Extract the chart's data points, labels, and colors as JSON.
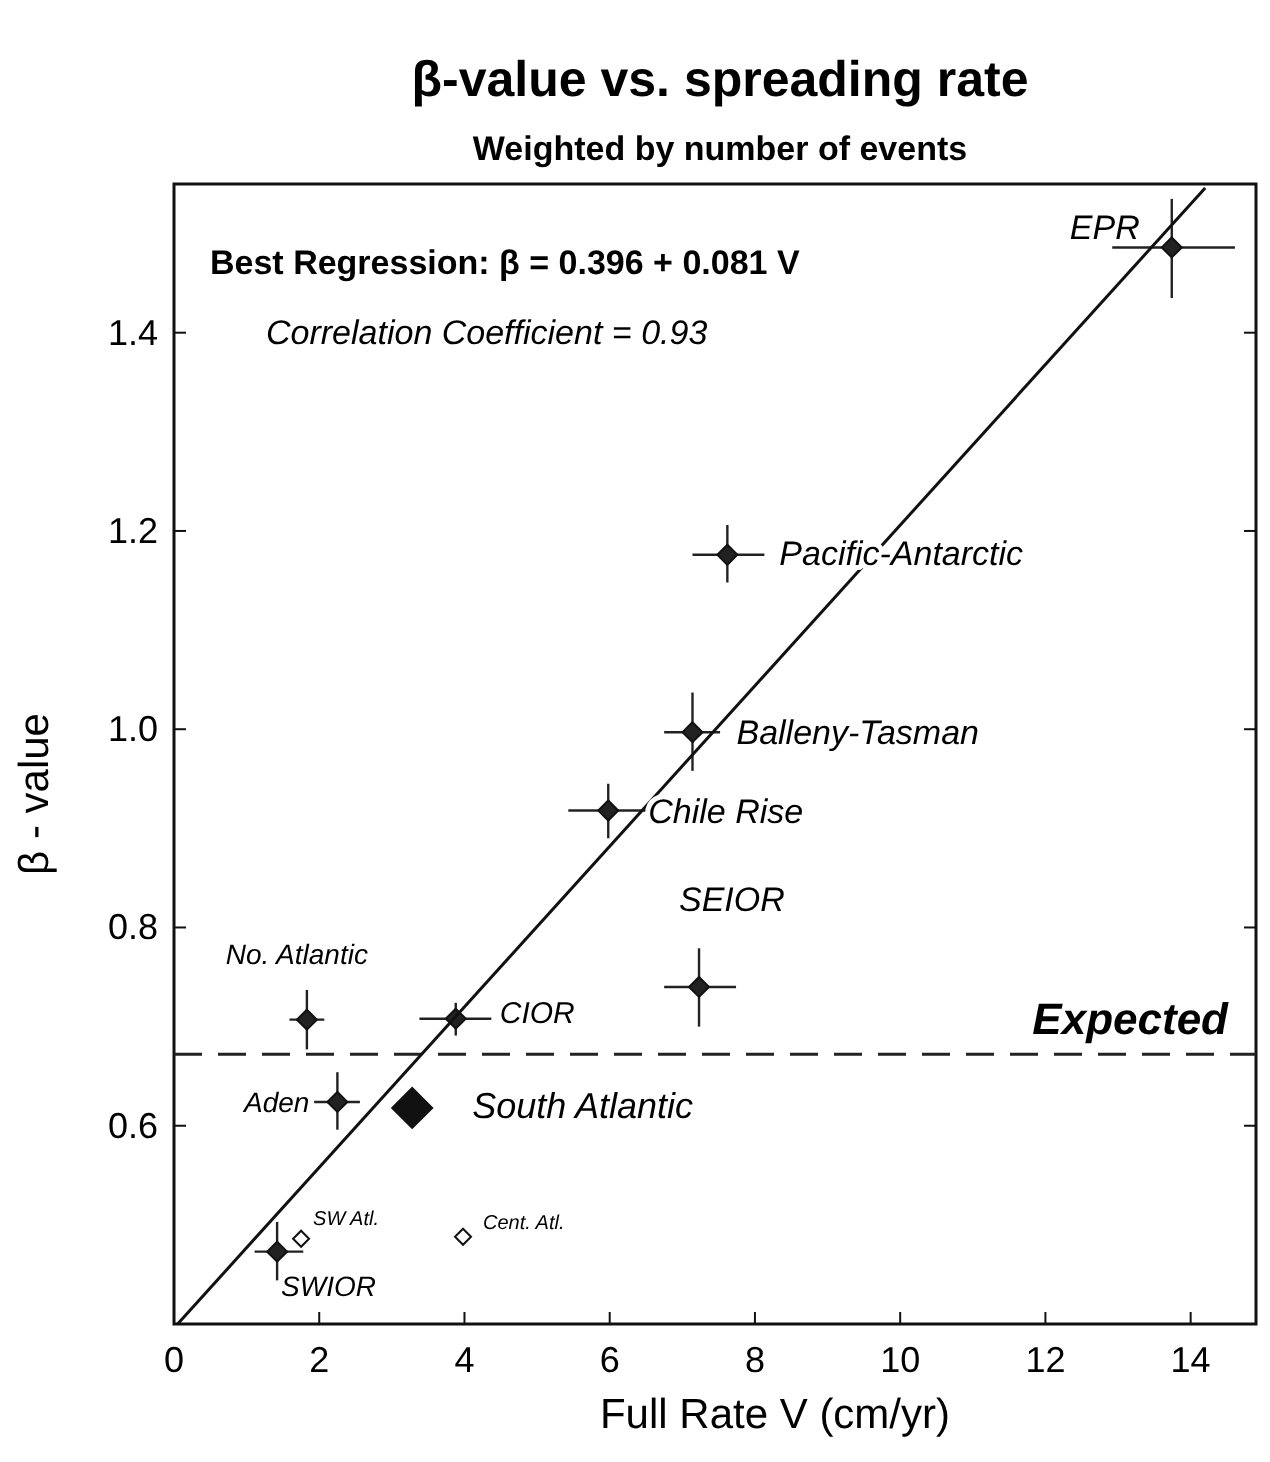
{
  "chart_data": {
    "type": "scatter",
    "title": "β-value vs. spreading rate",
    "subtitle": "Weighted by number of events",
    "xlabel": "Full Rate  V  (cm/yr)",
    "ylabel": "β - value",
    "xlim": [
      0,
      14.9
    ],
    "ylim": [
      0.4,
      1.55
    ],
    "xticks": [
      0,
      2,
      4,
      6,
      8,
      10,
      12,
      14
    ],
    "yticks": [
      {
        "value": 0.6,
        "label": "0.6"
      },
      {
        "value": 0.8,
        "label": "0.8"
      },
      {
        "value": 1.0,
        "label": "1.0"
      },
      {
        "value": 1.2,
        "label": "1.2"
      },
      {
        "value": 1.4,
        "label": "1.4"
      }
    ],
    "marker": "diamond",
    "grid": false,
    "series": [
      {
        "color": "#222222",
        "x": [
          13.74,
          7.62,
          7.14,
          5.98,
          7.23,
          1.83,
          3.88,
          2.25,
          1.42
        ],
        "values": [
          1.486,
          1.176,
          0.997,
          0.918,
          0.74,
          0.707,
          0.708,
          0.624,
          0.473
        ],
        "errors": [
          [
            1.435,
            1.535
          ],
          [
            1.148,
            1.206
          ],
          [
            0.958,
            1.037
          ],
          [
            0.89,
            0.945
          ],
          [
            0.7,
            0.779
          ],
          [
            0.677,
            0.737
          ],
          [
            0.691,
            0.724
          ],
          [
            0.596,
            0.654
          ],
          [
            0.444,
            0.503
          ]
        ],
        "xerrors": [
          [
            12.92,
            14.61
          ],
          [
            7.14,
            8.13
          ],
          [
            6.75,
            7.52
          ],
          [
            5.43,
            6.51
          ],
          [
            6.75,
            7.74
          ],
          [
            1.59,
            2.07
          ],
          [
            3.38,
            4.37
          ],
          [
            1.93,
            2.56
          ],
          [
            1.11,
            1.78
          ]
        ]
      },
      {
        "color": "#111111",
        "x": [
          3.28
        ],
        "values": [
          0.618
        ]
      },
      {
        "color": "#ffffff",
        "x": [
          1.75,
          3.98
        ],
        "values": [
          0.486,
          0.488
        ]
      },
      {
        "type": "line",
        "color": "#111111",
        "marker": "none",
        "x": [
          0.05,
          14.2
        ],
        "values": [
          0.4,
          1.546
        ]
      }
    ],
    "ref_lines": [
      {
        "axis": "y",
        "value": 0.672,
        "label": "Expected",
        "line_style": "dashed",
        "color": "#222222"
      }
    ],
    "annotations": [
      "Best Regression: β = 0.396 + 0.081 V",
      "Correlation Coefficient = 0.93",
      {
        "text": "EPR",
        "x": 13.74,
        "y": 1.486
      },
      {
        "text": "Pacific-Antarctic",
        "x": 7.62,
        "y": 1.176
      },
      {
        "text": "Balleny-Tasman",
        "x": 7.14,
        "y": 0.997
      },
      {
        "text": "Chile Rise",
        "x": 5.98,
        "y": 0.918
      },
      {
        "text": "SEIOR",
        "x": 7.23,
        "y": 0.74
      },
      {
        "text": "No. Atlantic",
        "x": 1.83,
        "y": 0.707
      },
      {
        "text": "CIOR",
        "x": 3.88,
        "y": 0.708
      },
      {
        "text": "Aden",
        "x": 2.25,
        "y": 0.624
      },
      {
        "text": "South Atlantic",
        "x": 3.28,
        "y": 0.618
      },
      {
        "text": "SWIOR",
        "x": 1.42,
        "y": 0.473
      },
      {
        "text": "SW Atl.",
        "x": 1.75,
        "y": 0.486
      },
      {
        "text": "Cent. Atl.",
        "x": 3.98,
        "y": 0.488
      }
    ]
  }
}
